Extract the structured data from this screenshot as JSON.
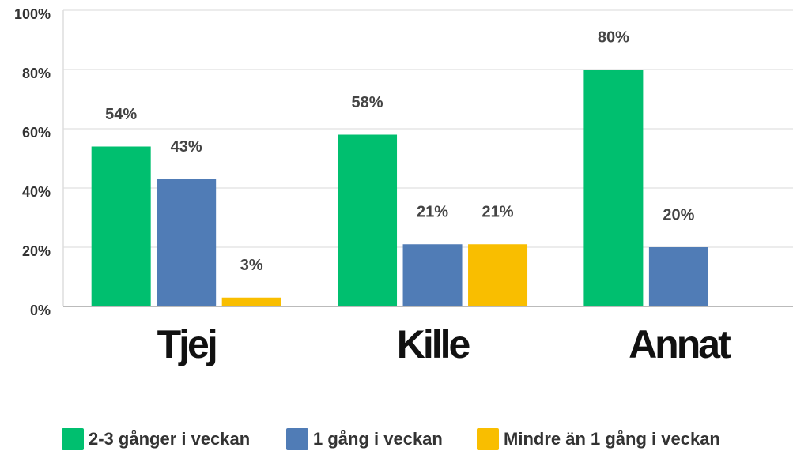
{
  "chart_data": {
    "type": "bar",
    "categories": [
      "Tjej",
      "Kille",
      "Annat"
    ],
    "series": [
      {
        "name": "2-3 gånger i veckan",
        "color": "#00bf6f",
        "values": [
          54,
          58,
          80
        ],
        "value_labels": [
          "54%",
          "58%",
          "80%"
        ]
      },
      {
        "name": "1 gång i veckan",
        "color": "#507cb6",
        "values": [
          43,
          21,
          20
        ],
        "value_labels": [
          "43%",
          "21%",
          "20%"
        ]
      },
      {
        "name": "Mindre än 1 gång i veckan",
        "color": "#f9be00",
        "values": [
          3,
          21,
          null
        ],
        "value_labels": [
          "3%",
          "21%",
          null
        ]
      }
    ],
    "ylim": [
      0,
      100
    ],
    "yticks": [
      {
        "value": 0,
        "label": "0%"
      },
      {
        "value": 20,
        "label": "20%"
      },
      {
        "value": 40,
        "label": "40%"
      },
      {
        "value": 60,
        "label": "60%"
      },
      {
        "value": 80,
        "label": "80%"
      },
      {
        "value": 100,
        "label": "100%"
      }
    ],
    "grid": true
  }
}
